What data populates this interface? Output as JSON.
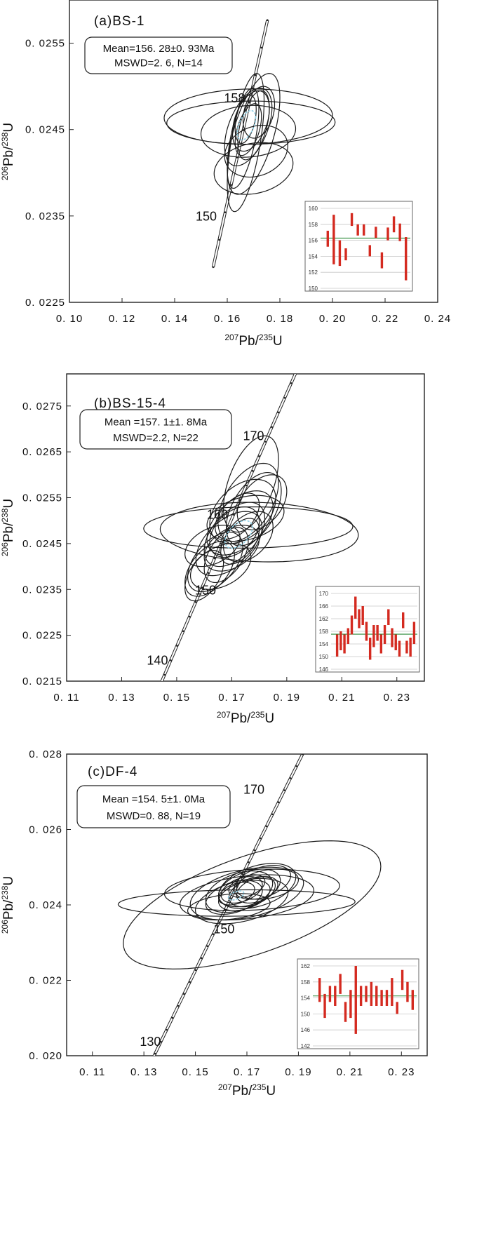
{
  "figure": "U-Pb concordia diagrams",
  "chart_data": [
    {
      "type": "scatter",
      "subtype": "concordia",
      "title": "(a)BS-1",
      "xlabel": {
        "pre": "207",
        "mid": "Pb/",
        "sup": "235",
        "post": "U"
      },
      "ylabel": {
        "pre": "206",
        "mid": "Pb/",
        "sup": "238",
        "post": "U"
      },
      "xlim": [
        0.1,
        0.24
      ],
      "ylim": [
        0.0225,
        0.026
      ],
      "x_ticks": [
        "0. 10",
        "0. 12",
        "0. 14",
        "0. 16",
        "0. 18",
        "0. 20",
        "0. 22",
        "0. 24"
      ],
      "y_ticks": [
        "0. 0225",
        "0. 0235",
        "0. 0245",
        "0. 0255"
      ],
      "mean_label": "Mean=156. 28±0. 93Ma",
      "mswd_label": "MSWD=2. 6, N=14",
      "age_labels": [
        {
          "text": "150",
          "age": 150
        },
        {
          "text": "158",
          "age": 158
        }
      ],
      "concordia_age_range": [
        146,
        164
      ],
      "ellipses": [
        {
          "x": 0.168,
          "y": 0.02465,
          "sx": 0.032,
          "sy": 0.00032,
          "rho": 0.05
        },
        {
          "x": 0.169,
          "y": 0.02458,
          "sx": 0.032,
          "sy": 0.00025,
          "rho": 0.02
        },
        {
          "x": 0.168,
          "y": 0.02448,
          "sx": 0.018,
          "sy": 0.0003,
          "rho": 0.1
        },
        {
          "x": 0.17,
          "y": 0.02445,
          "sx": 0.01,
          "sy": 0.0007,
          "rho": 0.6
        },
        {
          "x": 0.167,
          "y": 0.02435,
          "sx": 0.007,
          "sy": 0.0008,
          "rho": 0.6
        },
        {
          "x": 0.168,
          "y": 0.02453,
          "sx": 0.009,
          "sy": 0.00045,
          "rho": 0.5
        },
        {
          "x": 0.166,
          "y": 0.0244,
          "sx": 0.006,
          "sy": 0.00058,
          "rho": 0.6
        },
        {
          "x": 0.17,
          "y": 0.02455,
          "sx": 0.006,
          "sy": 0.0004,
          "rho": 0.5
        },
        {
          "x": 0.168,
          "y": 0.0245,
          "sx": 0.005,
          "sy": 0.0003,
          "rho": 0.5
        },
        {
          "x": 0.171,
          "y": 0.02425,
          "sx": 0.012,
          "sy": 0.0003,
          "rho": 0.2
        },
        {
          "x": 0.17,
          "y": 0.02405,
          "sx": 0.015,
          "sy": 0.0003,
          "rho": 0.2
        },
        {
          "x": 0.169,
          "y": 0.0246,
          "sx": 0.007,
          "sy": 0.00035,
          "rho": 0.4
        },
        {
          "x": 0.167,
          "y": 0.02462,
          "sx": 0.004,
          "sy": 0.00028,
          "rho": 0.4
        },
        {
          "x": 0.172,
          "y": 0.0247,
          "sx": 0.006,
          "sy": 0.0003,
          "rho": 0.3
        }
      ],
      "mean_ellipse": {
        "x": 0.1673,
        "y": 0.02455,
        "sx": 0.0035,
        "sy": 0.00017,
        "rho": 0.5
      },
      "inset": {
        "ylim": [
          150,
          160
        ],
        "y_ticks": [
          "150",
          "152",
          "154",
          "156",
          "158",
          "160"
        ],
        "mean": 156.28,
        "bars": [
          [
            155.2,
            157.2
          ],
          [
            153.0,
            159.2
          ],
          [
            152.8,
            156.0
          ],
          [
            153.5,
            155.0
          ],
          [
            157.8,
            159.4
          ],
          [
            156.6,
            158.0
          ],
          [
            156.6,
            158.0
          ],
          [
            154.0,
            155.4
          ],
          [
            156.3,
            157.7
          ],
          [
            152.5,
            154.5
          ],
          [
            156.0,
            157.6
          ],
          [
            157.0,
            159.0
          ],
          [
            155.9,
            158.1
          ],
          [
            151.0,
            156.4
          ]
        ]
      }
    },
    {
      "type": "scatter",
      "subtype": "concordia",
      "title": "(b)BS-15-4",
      "xlabel": {
        "pre": "207",
        "mid": "Pb/",
        "sup": "235",
        "post": "U"
      },
      "ylabel": {
        "pre": "206",
        "mid": "Pb/",
        "sup": "238",
        "post": "U"
      },
      "xlim": [
        0.11,
        0.24
      ],
      "ylim": [
        0.0215,
        0.0282
      ],
      "x_ticks": [
        "0. 11",
        "0. 13",
        "0. 15",
        "0. 17",
        "0. 19",
        "0. 21",
        "0. 23"
      ],
      "y_ticks": [
        "0. 0215",
        "0. 0225",
        "0. 0235",
        "0. 0245",
        "0. 0255",
        "0. 0265",
        "0. 0275"
      ],
      "mean_label": "Mean =157. 1±1. 8Ma",
      "mswd_label": "MSWD=2.2, N=22",
      "age_labels": [
        {
          "text": "140",
          "age": 140
        },
        {
          "text": "150",
          "age": 150
        },
        {
          "text": "160",
          "age": 160
        },
        {
          "text": "170",
          "age": 170
        }
      ],
      "concordia_age_range": [
        136,
        180
      ],
      "ellipses": [
        {
          "x": 0.176,
          "y": 0.02485,
          "sx": 0.038,
          "sy": 0.00045,
          "rho": 0.05
        },
        {
          "x": 0.18,
          "y": 0.02475,
          "sx": 0.036,
          "sy": 0.00065,
          "rho": -0.1
        },
        {
          "x": 0.177,
          "y": 0.0258,
          "sx": 0.01,
          "sy": 0.00105,
          "rho": 0.5
        },
        {
          "x": 0.176,
          "y": 0.0254,
          "sx": 0.011,
          "sy": 0.00085,
          "rho": 0.5
        },
        {
          "x": 0.174,
          "y": 0.0252,
          "sx": 0.012,
          "sy": 0.0007,
          "rho": 0.4
        },
        {
          "x": 0.178,
          "y": 0.02525,
          "sx": 0.01,
          "sy": 0.0008,
          "rho": 0.5
        },
        {
          "x": 0.173,
          "y": 0.02495,
          "sx": 0.012,
          "sy": 0.0007,
          "rho": 0.5
        },
        {
          "x": 0.171,
          "y": 0.0247,
          "sx": 0.011,
          "sy": 0.0007,
          "rho": 0.5
        },
        {
          "x": 0.169,
          "y": 0.0245,
          "sx": 0.012,
          "sy": 0.0007,
          "rho": 0.5
        },
        {
          "x": 0.164,
          "y": 0.0241,
          "sx": 0.01,
          "sy": 0.00065,
          "rho": 0.5
        },
        {
          "x": 0.162,
          "y": 0.02395,
          "sx": 0.009,
          "sy": 0.0006,
          "rho": 0.5
        },
        {
          "x": 0.16,
          "y": 0.0238,
          "sx": 0.007,
          "sy": 0.00055,
          "rho": 0.5
        },
        {
          "x": 0.166,
          "y": 0.024,
          "sx": 0.011,
          "sy": 0.0005,
          "rho": 0.4
        },
        {
          "x": 0.172,
          "y": 0.0251,
          "sx": 0.008,
          "sy": 0.0005,
          "rho": 0.5
        },
        {
          "x": 0.175,
          "y": 0.02505,
          "sx": 0.014,
          "sy": 0.0005,
          "rho": 0.3
        },
        {
          "x": 0.17,
          "y": 0.0244,
          "sx": 0.01,
          "sy": 0.0005,
          "rho": 0.4
        },
        {
          "x": 0.168,
          "y": 0.02425,
          "sx": 0.008,
          "sy": 0.0006,
          "rho": 0.5
        },
        {
          "x": 0.176,
          "y": 0.02465,
          "sx": 0.009,
          "sy": 0.00055,
          "rho": 0.4
        },
        {
          "x": 0.173,
          "y": 0.02455,
          "sx": 0.007,
          "sy": 0.0005,
          "rho": 0.5
        },
        {
          "x": 0.181,
          "y": 0.0254,
          "sx": 0.009,
          "sy": 0.0006,
          "rho": 0.4
        },
        {
          "x": 0.163,
          "y": 0.02445,
          "sx": 0.01,
          "sy": 0.00045,
          "rho": 0.4
        },
        {
          "x": 0.171,
          "y": 0.02475,
          "sx": 0.009,
          "sy": 0.00055,
          "rho": 0.4
        }
      ],
      "mean_ellipse": {
        "x": 0.1725,
        "y": 0.0247,
        "sx": 0.005,
        "sy": 0.0003,
        "rho": 0.5
      },
      "inset": {
        "ylim": [
          146,
          170
        ],
        "y_ticks": [
          "146",
          "150",
          "154",
          "158",
          "162",
          "166",
          "170"
        ],
        "mean": 157.1,
        "bars": [
          [
            150.0,
            157.0
          ],
          [
            152.0,
            158.0
          ],
          [
            151.0,
            157.0
          ],
          [
            154.0,
            159.0
          ],
          [
            157.0,
            163.0
          ],
          [
            162.0,
            169.0
          ],
          [
            159.0,
            165.0
          ],
          [
            160.0,
            166.0
          ],
          [
            155.0,
            161.0
          ],
          [
            149.0,
            156.0
          ],
          [
            153.0,
            160.0
          ],
          [
            155.0,
            160.0
          ],
          [
            151.0,
            157.0
          ],
          [
            154.0,
            160.0
          ],
          [
            160.0,
            165.0
          ],
          [
            153.0,
            159.0
          ],
          [
            152.0,
            157.0
          ],
          [
            150.0,
            155.0
          ],
          [
            159.0,
            164.0
          ],
          [
            151.0,
            155.0
          ],
          [
            150.0,
            156.0
          ],
          [
            154.0,
            161.0
          ]
        ]
      }
    },
    {
      "type": "scatter",
      "subtype": "concordia",
      "title": "(c)DF-4",
      "xlabel": {
        "pre": "207",
        "mid": "Pb/",
        "sup": "235",
        "post": "U"
      },
      "ylabel": {
        "pre": "206",
        "mid": "Pb/",
        "sup": "238",
        "post": "U"
      },
      "xlim": [
        0.1,
        0.24
      ],
      "ylim": [
        0.02,
        0.028
      ],
      "x_ticks": [
        "0. 11",
        "0. 13",
        "0. 15",
        "0. 17",
        "0. 19",
        "0. 21",
        "0. 23"
      ],
      "y_ticks": [
        "0. 020",
        "0. 022",
        "0. 024",
        "0. 026",
        "0. 028"
      ],
      "mean_label": "Mean =154. 5±1. 0Ma",
      "mswd_label": "MSWD=0. 88, N=19",
      "age_labels": [
        {
          "text": "130",
          "age": 130
        },
        {
          "text": "150",
          "age": 150
        },
        {
          "text": "170",
          "age": 170
        }
      ],
      "concordia_age_range": [
        122,
        185
      ],
      "ellipses": [
        {
          "x": 0.172,
          "y": 0.024,
          "sx": 0.05,
          "sy": 0.0017,
          "rho": 0.6
        },
        {
          "x": 0.166,
          "y": 0.02405,
          "sx": 0.046,
          "sy": 0.00035,
          "rho": 0.1
        },
        {
          "x": 0.172,
          "y": 0.0244,
          "sx": 0.034,
          "sy": 0.00055,
          "rho": 0.2
        },
        {
          "x": 0.17,
          "y": 0.0242,
          "sx": 0.026,
          "sy": 0.0006,
          "rho": 0.3
        },
        {
          "x": 0.17,
          "y": 0.0243,
          "sx": 0.022,
          "sy": 0.0007,
          "rho": 0.4
        },
        {
          "x": 0.168,
          "y": 0.0241,
          "sx": 0.018,
          "sy": 0.0006,
          "rho": 0.4
        },
        {
          "x": 0.174,
          "y": 0.0245,
          "sx": 0.015,
          "sy": 0.0006,
          "rho": 0.4
        },
        {
          "x": 0.167,
          "y": 0.02435,
          "sx": 0.013,
          "sy": 0.00055,
          "rho": 0.4
        },
        {
          "x": 0.171,
          "y": 0.02445,
          "sx": 0.012,
          "sy": 0.0005,
          "rho": 0.4
        },
        {
          "x": 0.176,
          "y": 0.0246,
          "sx": 0.011,
          "sy": 0.00045,
          "rho": 0.4
        },
        {
          "x": 0.165,
          "y": 0.0242,
          "sx": 0.011,
          "sy": 0.00045,
          "rho": 0.4
        },
        {
          "x": 0.169,
          "y": 0.02425,
          "sx": 0.01,
          "sy": 0.0004,
          "rho": 0.4
        },
        {
          "x": 0.172,
          "y": 0.02435,
          "sx": 0.009,
          "sy": 0.0004,
          "rho": 0.4
        },
        {
          "x": 0.163,
          "y": 0.02395,
          "sx": 0.016,
          "sy": 0.00035,
          "rho": 0.3
        },
        {
          "x": 0.174,
          "y": 0.0244,
          "sx": 0.008,
          "sy": 0.00035,
          "rho": 0.4
        },
        {
          "x": 0.168,
          "y": 0.0244,
          "sx": 0.008,
          "sy": 0.00035,
          "rho": 0.4
        },
        {
          "x": 0.17,
          "y": 0.0245,
          "sx": 0.007,
          "sy": 0.0003,
          "rho": 0.4
        },
        {
          "x": 0.178,
          "y": 0.02455,
          "sx": 0.012,
          "sy": 0.0004,
          "rho": 0.3
        },
        {
          "x": 0.166,
          "y": 0.0243,
          "sx": 0.007,
          "sy": 0.0003,
          "rho": 0.4
        }
      ],
      "mean_ellipse": {
        "x": 0.1658,
        "y": 0.02425,
        "sx": 0.003,
        "sy": 0.00012,
        "rho": 0.5
      },
      "inset": {
        "ylim": [
          142,
          162
        ],
        "y_ticks": [
          "142",
          "146",
          "150",
          "154",
          "158",
          "162"
        ],
        "mean": 154.5,
        "bars": [
          [
            153.0,
            159.0
          ],
          [
            149.0,
            155.0
          ],
          [
            153.0,
            157.0
          ],
          [
            152.0,
            157.0
          ],
          [
            155.0,
            160.0
          ],
          [
            148.0,
            153.0
          ],
          [
            149.0,
            156.0
          ],
          [
            145.0,
            162.0
          ],
          [
            152.0,
            157.0
          ],
          [
            153.0,
            157.0
          ],
          [
            152.0,
            158.0
          ],
          [
            152.0,
            157.0
          ],
          [
            152.0,
            156.0
          ],
          [
            152.0,
            156.0
          ],
          [
            152.0,
            159.0
          ],
          [
            150.0,
            153.0
          ],
          [
            156.0,
            161.0
          ],
          [
            153.0,
            158.0
          ],
          [
            151.0,
            156.0
          ]
        ]
      }
    }
  ]
}
